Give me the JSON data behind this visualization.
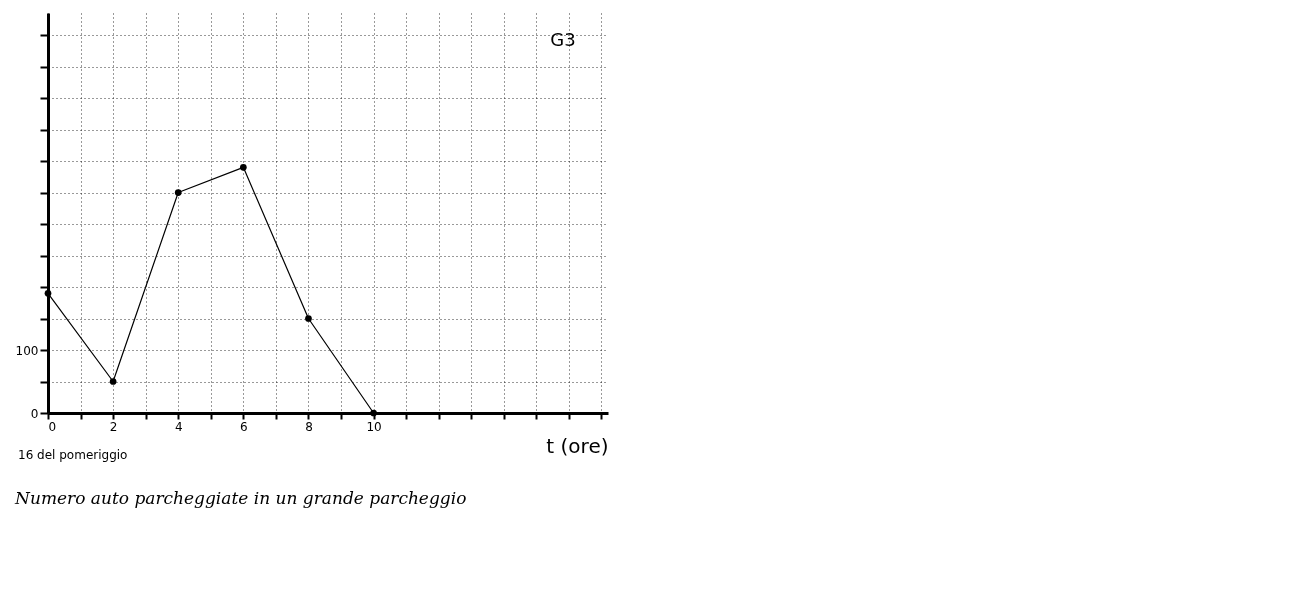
{
  "chart_data": {
    "type": "line",
    "title": "Numero auto parcheggiate in un grande parcheggio",
    "xlabel": "t (ore)",
    "x": [
      0,
      2,
      4,
      6,
      8,
      10
    ],
    "series": [
      {
        "color": "#000000",
        "values": [
          190,
          50,
          350,
          390,
          150,
          0
        ]
      }
    ],
    "xlim": [
      0,
      17.2
    ],
    "ylim": [
      0,
      635
    ],
    "xticks": [
      0,
      {
        "value": 1,
        "label": null
      },
      2,
      {
        "value": 3,
        "label": null
      },
      4,
      {
        "value": 5,
        "label": null
      },
      6,
      {
        "value": 7,
        "label": null
      },
      8,
      {
        "value": 9,
        "label": null
      },
      10,
      {
        "value": 11,
        "label": null
      },
      {
        "value": 12,
        "label": null
      },
      {
        "value": 13,
        "label": null
      },
      {
        "value": 14,
        "label": null
      },
      {
        "value": 15,
        "label": null
      },
      {
        "value": 16,
        "label": null
      },
      {
        "value": 17,
        "label": null
      }
    ],
    "yticks": [
      0,
      {
        "value": 50,
        "label": null
      },
      100,
      {
        "value": 150,
        "label": null
      },
      {
        "value": 200,
        "label": null
      },
      {
        "value": 250,
        "label": null
      },
      {
        "value": 300,
        "label": null
      },
      {
        "value": 350,
        "label": null
      },
      {
        "value": 400,
        "label": null
      },
      {
        "value": 450,
        "label": null
      },
      {
        "value": 500,
        "label": null
      },
      {
        "value": 550,
        "label": null
      },
      {
        "value": 600,
        "label": null
      }
    ],
    "annotations": [
      "G3",
      "16 del pomeriggio"
    ],
    "grid": true,
    "marker": "circle",
    "line_style": "solid"
  }
}
